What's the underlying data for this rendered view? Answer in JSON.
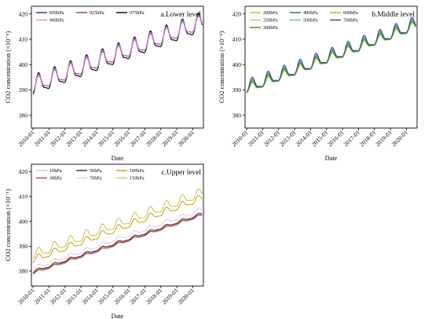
{
  "figure": {
    "panels": [
      {
        "panel_label": "a.Lower level",
        "xlabel": "Date",
        "ylabel": "CO2 concentration (×10⁻⁶)",
        "legend": [
          "850hPa",
          "925hPa",
          "975hPa",
          "900hPa"
        ]
      },
      {
        "panel_label": "b.Middle level",
        "xlabel": "Date",
        "ylabel": "CO2 concentration (×10⁻⁶)",
        "legend": [
          "200hPa",
          "400hPa",
          "600hPa",
          "250hPa",
          "500hPa",
          "700hPa",
          "300hPa"
        ]
      },
      {
        "panel_label": "c.Upper level",
        "xlabel": "Date",
        "ylabel": "CO2 concentration (×10⁻⁶)",
        "legend": [
          "10hPa",
          "50hPa",
          "100hPa",
          "30hPa",
          "70hPa",
          "150hPa"
        ]
      }
    ]
  },
  "chart_data": [
    {
      "type": "line",
      "panel_label": "a.Lower level",
      "xlabel": "Date",
      "ylabel": "CO2 concentration (×10⁻⁶)",
      "x_range": [
        "2010-01",
        "2020-08"
      ],
      "x_ticks": [
        "2010-01",
        "2011-01",
        "2012-01",
        "2013-01",
        "2014-01",
        "2015-01",
        "2016-01",
        "2017-01",
        "2018-01",
        "2019-01",
        "2020-01"
      ],
      "ylim": [
        375,
        423
      ],
      "y_ticks": [
        380,
        390,
        400,
        410,
        420
      ],
      "legend_position": "top-left",
      "series": [
        {
          "name": "850hPa",
          "color": "#2b2b6e",
          "baseline_2010": 391.5,
          "annual_growth": 2.35,
          "seasonal_amplitude": 3.6
        },
        {
          "name": "925hPa",
          "color": "#8a2f8f",
          "baseline_2010": 391.8,
          "annual_growth": 2.35,
          "seasonal_amplitude": 4.0
        },
        {
          "name": "975hPa",
          "color": "#000000",
          "baseline_2010": 391.3,
          "annual_growth": 2.35,
          "seasonal_amplitude": 4.8
        },
        {
          "name": "900hPa",
          "color": "#d98bd9",
          "baseline_2010": 391.6,
          "annual_growth": 2.35,
          "seasonal_amplitude": 3.9
        }
      ]
    },
    {
      "type": "line",
      "panel_label": "b.Middle level",
      "xlabel": "Date",
      "ylabel": "CO2 concentration (×10⁻⁶)",
      "x_range": [
        "2010-01",
        "2020-08"
      ],
      "x_ticks": [
        "2010-01",
        "2011-01",
        "2012-01",
        "2013-01",
        "2014-01",
        "2015-01",
        "2016-01",
        "2017-01",
        "2018-01",
        "2019-01",
        "2020-01"
      ],
      "ylim": [
        375,
        423
      ],
      "y_ticks": [
        380,
        390,
        400,
        410,
        420
      ],
      "legend_position": "top-left",
      "series": [
        {
          "name": "200hPa",
          "color": "#c9c23a",
          "baseline_2010": 390.0,
          "annual_growth": 2.35,
          "seasonal_amplitude": 2.0
        },
        {
          "name": "400hPa",
          "color": "#1f6f5c",
          "baseline_2010": 390.6,
          "annual_growth": 2.35,
          "seasonal_amplitude": 2.7
        },
        {
          "name": "600hPa",
          "color": "#c9a227",
          "baseline_2010": 390.8,
          "annual_growth": 2.35,
          "seasonal_amplitude": 2.9
        },
        {
          "name": "250hPa",
          "color": "#b5d35a",
          "baseline_2010": 390.2,
          "annual_growth": 2.35,
          "seasonal_amplitude": 2.2
        },
        {
          "name": "500hPa",
          "color": "#58c8b6",
          "baseline_2010": 390.7,
          "annual_growth": 2.35,
          "seasonal_amplitude": 2.8
        },
        {
          "name": "700hPa",
          "color": "#3a3aa0",
          "baseline_2010": 391.1,
          "annual_growth": 2.35,
          "seasonal_amplitude": 3.2
        },
        {
          "name": "300hPa",
          "color": "#2e8f3a",
          "baseline_2010": 390.4,
          "annual_growth": 2.35,
          "seasonal_amplitude": 2.4
        }
      ]
    },
    {
      "type": "line",
      "panel_label": "c.Upper level",
      "xlabel": "Date",
      "ylabel": "CO2 concentration (×10⁻⁶)",
      "x_range": [
        "2010-01",
        "2020-08"
      ],
      "x_ticks": [
        "2010-01",
        "2011-01",
        "2012-01",
        "2013-01",
        "2014-01",
        "2015-01",
        "2016-01",
        "2017-01",
        "2018-01",
        "2019-01",
        "2020-01"
      ],
      "ylim": [
        374,
        423
      ],
      "y_ticks": [
        380,
        390,
        400,
        410,
        420
      ],
      "legend_position": "top-left",
      "series": [
        {
          "name": "10hPa",
          "color": "#e3b8e0",
          "baseline_2010": 379.0,
          "annual_growth": 2.2,
          "seasonal_amplitude": 0.5
        },
        {
          "name": "50hPa",
          "color": "#5a1f12",
          "baseline_2010": 379.8,
          "annual_growth": 2.2,
          "seasonal_amplitude": 0.6
        },
        {
          "name": "100hPa",
          "color": "#c4a51c",
          "baseline_2010": 384.5,
          "annual_growth": 2.35,
          "seasonal_amplitude": 1.6
        },
        {
          "name": "30hPa",
          "color": "#a04a36",
          "baseline_2010": 379.3,
          "annual_growth": 2.2,
          "seasonal_amplitude": 0.5
        },
        {
          "name": "70hPa",
          "color": "#e8c8e8",
          "baseline_2010": 381.0,
          "annual_growth": 2.25,
          "seasonal_amplitude": 1.0
        },
        {
          "name": "150hPa",
          "color": "#d6c05a",
          "baseline_2010": 386.5,
          "annual_growth": 2.35,
          "seasonal_amplitude": 2.3
        }
      ]
    }
  ]
}
